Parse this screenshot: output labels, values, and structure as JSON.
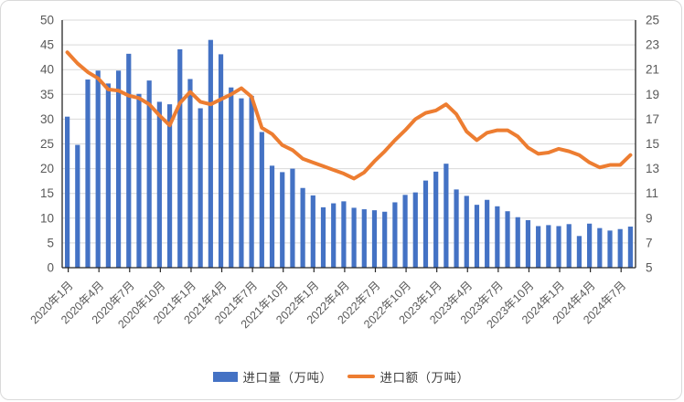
{
  "legend": {
    "volume_label": "进口量（万吨）",
    "value_label": "进口额（万吨）"
  },
  "colors": {
    "bar": "#4472C4",
    "line": "#ED7D31",
    "grid": "#D9D9D9",
    "axis": "#262626",
    "tick_label": "#595959",
    "legend_text": "#404040",
    "frame_border": "#D9D9D9"
  },
  "chart_data": {
    "type": "bar",
    "combo": "bar+line",
    "grid": true,
    "legend_position": "bottom",
    "categories": [
      "2020年1月",
      "2020年2月",
      "2020年3月",
      "2020年4月",
      "2020年5月",
      "2020年6月",
      "2020年7月",
      "2020年8月",
      "2020年9月",
      "2020年10月",
      "2020年11月",
      "2020年12月",
      "2021年1月",
      "2021年2月",
      "2021年3月",
      "2021年4月",
      "2021年5月",
      "2021年6月",
      "2021年7月",
      "2021年8月",
      "2021年9月",
      "2021年10月",
      "2021年11月",
      "2021年12月",
      "2022年1月",
      "2022年2月",
      "2022年3月",
      "2022年4月",
      "2022年5月",
      "2022年6月",
      "2022年7月",
      "2022年8月",
      "2022年9月",
      "2022年10月",
      "2022年11月",
      "2022年12月",
      "2023年1月",
      "2023年2月",
      "2023年3月",
      "2023年4月",
      "2023年5月",
      "2023年6月",
      "2023年7月",
      "2023年8月",
      "2023年9月",
      "2023年10月",
      "2023年11月",
      "2023年12月",
      "2024年1月",
      "2024年2月",
      "2024年3月",
      "2024年4月",
      "2024年5月",
      "2024年6月",
      "2024年7月",
      "2024年8月"
    ],
    "x_tick_labels": [
      "2020年1月",
      "2020年4月",
      "2020年7月",
      "2020年10月",
      "2021年1月",
      "2021年4月",
      "2021年7月",
      "2021年10月",
      "2022年1月",
      "2022年4月",
      "2022年7月",
      "2022年10月",
      "2023年1月",
      "2023年4月",
      "2023年7月",
      "2023年10月",
      "2024年1月",
      "2024年4月",
      "2024年7月"
    ],
    "x_tick_every": 3,
    "series": [
      {
        "name": "进口量（万吨）",
        "type": "bar",
        "axis": "left",
        "values": [
          30.5,
          24.8,
          38.0,
          39.8,
          37.2,
          39.8,
          43.2,
          35.1,
          37.8,
          33.5,
          33.0,
          44.1,
          38.1,
          32.2,
          46.0,
          43.1,
          36.4,
          34.2,
          34.7,
          27.4,
          20.6,
          19.3,
          20.0,
          16.1,
          14.6,
          12.2,
          13.0,
          13.4,
          12.1,
          11.8,
          11.6,
          11.3,
          13.2,
          14.7,
          15.2,
          17.6,
          19.4,
          21.0,
          15.8,
          14.5,
          12.7,
          13.7,
          12.4,
          11.4,
          10.2,
          9.6,
          8.4,
          8.6,
          8.4,
          8.8,
          6.4,
          8.9,
          8.0,
          7.5,
          7.8,
          8.3
        ]
      },
      {
        "name": "进口额（万吨）",
        "type": "line",
        "axis": "right",
        "values": [
          22.4,
          21.5,
          20.8,
          20.3,
          19.4,
          19.3,
          18.9,
          18.7,
          18.2,
          17.3,
          16.5,
          18.3,
          19.2,
          18.4,
          18.2,
          18.6,
          19.0,
          19.5,
          18.8,
          16.3,
          15.8,
          14.9,
          14.5,
          13.8,
          13.5,
          13.2,
          12.9,
          12.6,
          12.2,
          12.7,
          13.6,
          14.4,
          15.3,
          16.1,
          17.0,
          17.5,
          17.7,
          18.2,
          17.4,
          16.0,
          15.3,
          15.9,
          16.1,
          16.1,
          15.6,
          14.7,
          14.2,
          14.3,
          14.6,
          14.4,
          14.1,
          13.5,
          13.1,
          13.3,
          13.3,
          14.1
        ]
      }
    ],
    "left_axis": {
      "min": 0,
      "max": 50,
      "step": 5,
      "ticks": [
        0,
        5,
        10,
        15,
        20,
        25,
        30,
        35,
        40,
        45,
        50
      ]
    },
    "right_axis": {
      "min": 5,
      "max": 25,
      "step": 2,
      "ticks": [
        5,
        7,
        9,
        11,
        13,
        15,
        17,
        19,
        21,
        23,
        25
      ]
    }
  }
}
